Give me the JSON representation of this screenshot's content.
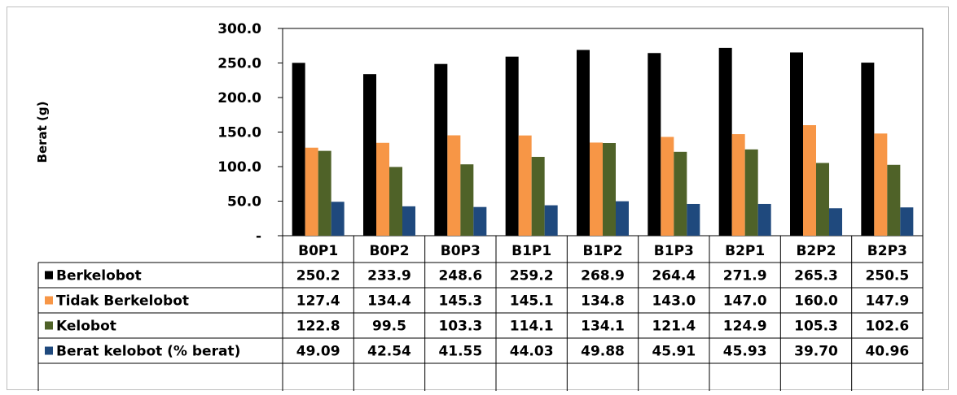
{
  "chart_data": {
    "type": "bar",
    "ylabel": "Berat (g)",
    "ylim": [
      0,
      300
    ],
    "yticks": [
      "-",
      "50.0",
      "100.0",
      "150.0",
      "200.0",
      "250.0",
      "300.0"
    ],
    "categories": [
      "B0P1",
      "B0P2",
      "B0P3",
      "B1P1",
      "B1P2",
      "B1P3",
      "B2P1",
      "B2P2",
      "B2P3"
    ],
    "legend_placement": "data-table",
    "grid": false,
    "series": [
      {
        "name": "Berkelobot",
        "color": "#000000",
        "values": [
          250.2,
          233.9,
          248.6,
          259.2,
          268.9,
          264.4,
          271.9,
          265.3,
          250.5
        ],
        "labels": [
          "250.2",
          "233.9",
          "248.6",
          "259.2",
          "268.9",
          "264.4",
          "271.9",
          "265.3",
          "250.5"
        ]
      },
      {
        "name": "Tidak Berkelobot",
        "color": "#f79646",
        "values": [
          127.4,
          134.4,
          145.3,
          145.1,
          134.8,
          143.0,
          147.0,
          160.0,
          147.9
        ],
        "labels": [
          "127.4",
          "134.4",
          "145.3",
          "145.1",
          "134.8",
          "143.0",
          "147.0",
          "160.0",
          "147.9"
        ]
      },
      {
        "name": "Kelobot",
        "color": "#4f6228",
        "values": [
          122.8,
          99.5,
          103.3,
          114.1,
          134.1,
          121.4,
          124.9,
          105.3,
          102.6
        ],
        "labels": [
          "122.8",
          "99.5",
          "103.3",
          "114.1",
          "134.1",
          "121.4",
          "124.9",
          "105.3",
          "102.6"
        ]
      },
      {
        "name": "Berat kelobot (% berat)",
        "color": "#1f497d",
        "values": [
          49.09,
          42.54,
          41.55,
          44.03,
          49.88,
          45.91,
          45.93,
          39.7,
          40.96
        ],
        "labels": [
          "49.09",
          "42.54",
          "41.55",
          "44.03",
          "49.88",
          "45.91",
          "45.93",
          "39.70",
          "40.96"
        ]
      }
    ]
  }
}
